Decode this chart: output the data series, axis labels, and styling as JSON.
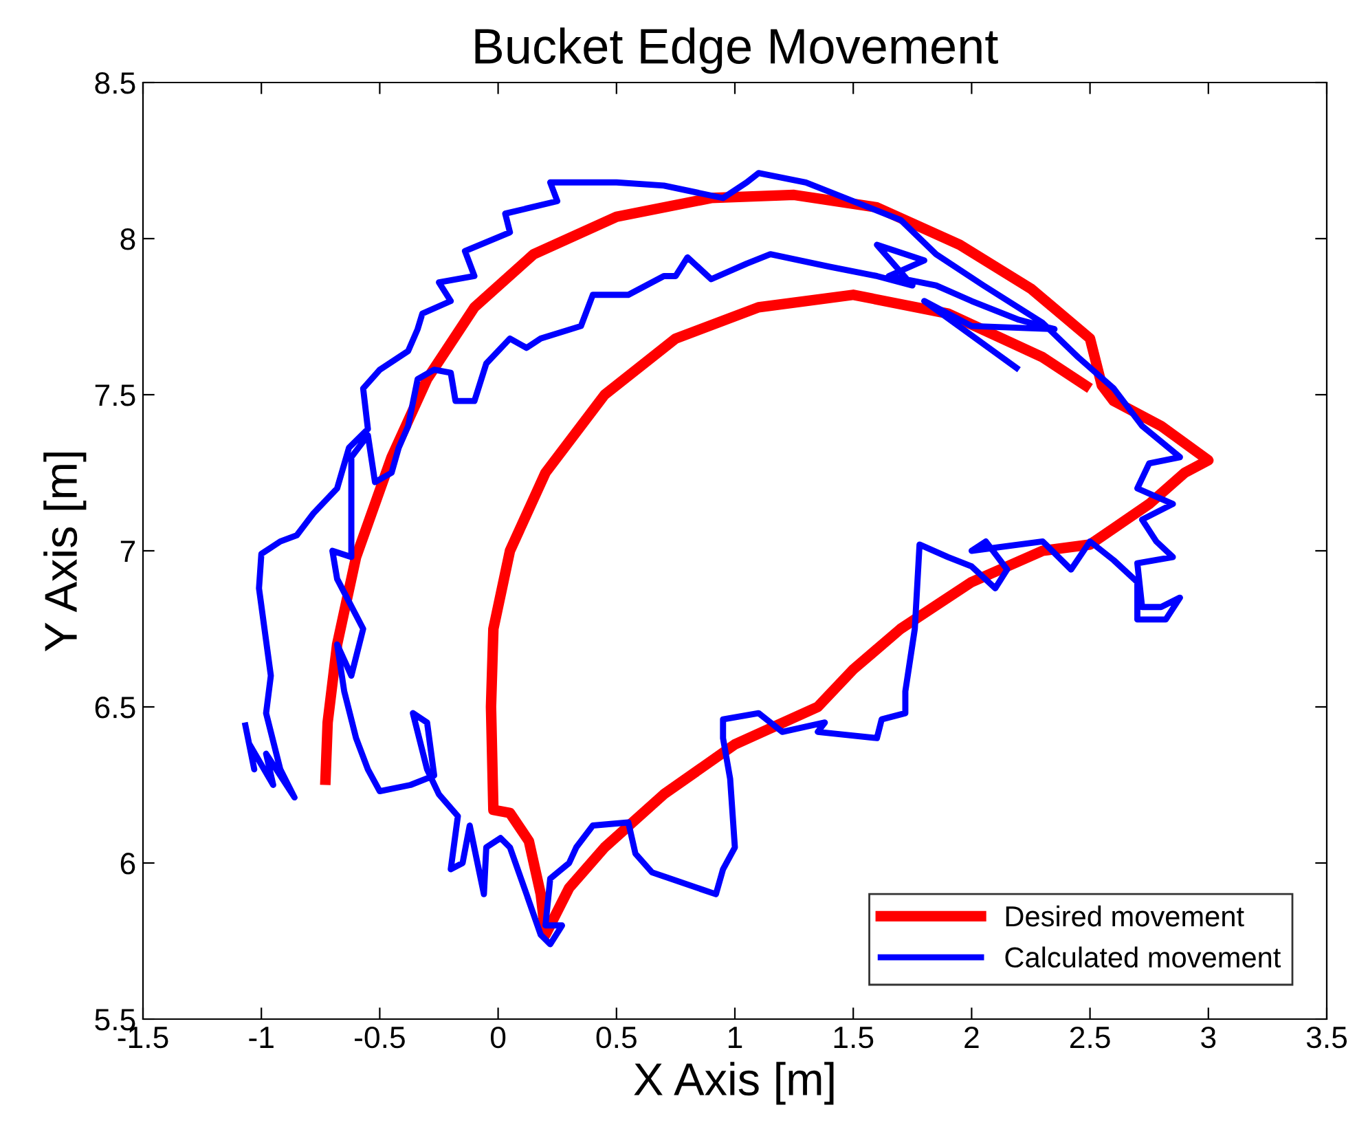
{
  "chart_data": {
    "type": "line",
    "title": "Bucket Edge Movement",
    "xlabel": "X Axis [m]",
    "ylabel": "Y Axis [m]",
    "xlim": [
      -1.5,
      3.5
    ],
    "ylim": [
      5.5,
      8.5
    ],
    "xticks": [
      -1.5,
      -1,
      -0.5,
      0,
      0.5,
      1,
      1.5,
      2,
      2.5,
      3,
      3.5
    ],
    "yticks": [
      5.5,
      6,
      6.5,
      7,
      7.5,
      8,
      8.5
    ],
    "grid": false,
    "legend": "bottom right",
    "marker": "none",
    "line_style": "solid",
    "series": [
      {
        "name": "Desired movement",
        "color": "#ff0000",
        "x": [
          -0.73,
          -0.72,
          -0.68,
          -0.6,
          -0.45,
          -0.3,
          -0.1,
          0.15,
          0.5,
          0.9,
          1.25,
          1.6,
          1.95,
          2.25,
          2.5,
          2.55,
          2.6,
          2.8,
          3.0,
          2.9,
          2.75,
          2.5,
          2.3,
          2.0,
          1.7,
          1.5,
          1.35,
          1.0,
          0.7,
          0.45,
          0.3,
          0.22,
          0.2,
          0.18,
          0.13,
          0.05,
          -0.02,
          -0.03,
          -0.02,
          0.05,
          0.2,
          0.45,
          0.75,
          1.1,
          1.5,
          1.9,
          2.3,
          2.5
        ],
        "values": [
          6.25,
          6.45,
          6.7,
          6.98,
          7.3,
          7.55,
          7.78,
          7.95,
          8.07,
          8.13,
          8.14,
          8.1,
          7.98,
          7.84,
          7.68,
          7.53,
          7.48,
          7.4,
          7.29,
          7.25,
          7.15,
          7.02,
          7.0,
          6.9,
          6.75,
          6.62,
          6.5,
          6.38,
          6.22,
          6.05,
          5.92,
          5.8,
          5.77,
          5.9,
          6.07,
          6.16,
          6.17,
          6.5,
          6.75,
          7.0,
          7.25,
          7.5,
          7.68,
          7.78,
          7.82,
          7.76,
          7.62,
          7.52
        ]
      },
      {
        "name": "Calculated movement",
        "color": "#0000ff",
        "x": [
          -1.07,
          -1.03,
          -1.05,
          -0.95,
          -0.98,
          -0.86,
          -0.92,
          -0.98,
          -0.96,
          -1.01,
          -1.0,
          -0.92,
          -0.85,
          -0.78,
          -0.68,
          -0.63,
          -0.55,
          -0.57,
          -0.5,
          -0.38,
          -0.34,
          -0.32,
          -0.2,
          -0.25,
          -0.1,
          -0.14,
          0.05,
          0.03,
          0.25,
          0.22,
          0.5,
          0.7,
          0.95,
          1.05,
          1.1,
          1.3,
          1.5,
          1.7,
          1.85,
          2.05,
          2.3,
          2.45,
          2.6,
          2.72,
          2.88,
          2.75,
          2.7,
          2.85,
          2.72,
          2.78,
          2.85,
          2.7,
          2.72,
          2.8,
          2.88,
          2.82,
          2.7,
          2.7,
          2.6,
          2.5,
          2.42,
          2.3,
          2.0,
          2.06,
          2.15,
          2.1,
          2.0,
          1.9,
          1.78,
          1.76,
          1.72,
          1.72,
          1.62,
          1.6,
          1.35,
          1.38,
          1.2,
          1.1,
          0.95,
          0.95,
          0.98,
          1.0,
          0.95,
          0.92,
          0.65,
          0.58,
          0.55,
          0.4,
          0.33,
          0.3,
          0.22,
          0.2,
          0.27,
          0.22,
          0.18,
          0.12,
          0.05,
          0.01,
          -0.05,
          -0.06,
          -0.12,
          -0.15,
          -0.2,
          -0.17,
          -0.25,
          -0.3,
          -0.36,
          -0.3,
          -0.27,
          -0.37,
          -0.5,
          -0.55,
          -0.6,
          -0.65,
          -0.68,
          -0.62,
          -0.57,
          -0.68,
          -0.7,
          -0.62,
          -0.62,
          -0.55,
          -0.52,
          -0.45,
          -0.42,
          -0.38,
          -0.34,
          -0.27,
          -0.2,
          -0.18,
          -0.1,
          -0.05,
          0.05,
          0.12,
          0.18,
          0.35,
          0.4,
          0.55,
          0.7,
          0.75,
          0.8,
          0.9,
          1.05,
          1.15,
          1.4,
          1.6,
          1.75,
          1.6,
          1.8,
          1.65,
          1.85,
          2.0,
          2.2,
          2.35,
          2.0,
          1.8,
          2.2
        ],
        "values": [
          6.45,
          6.3,
          6.38,
          6.25,
          6.35,
          6.21,
          6.3,
          6.48,
          6.6,
          6.88,
          6.99,
          7.03,
          7.05,
          7.12,
          7.2,
          7.33,
          7.39,
          7.52,
          7.58,
          7.64,
          7.71,
          7.76,
          7.8,
          7.86,
          7.88,
          7.96,
          8.02,
          8.08,
          8.12,
          8.18,
          8.18,
          8.17,
          8.13,
          8.18,
          8.21,
          8.18,
          8.12,
          8.06,
          7.95,
          7.85,
          7.73,
          7.62,
          7.52,
          7.4,
          7.3,
          7.28,
          7.2,
          7.15,
          7.1,
          7.03,
          6.98,
          6.96,
          6.82,
          6.82,
          6.85,
          6.78,
          6.78,
          6.9,
          6.97,
          7.03,
          6.94,
          7.03,
          7.0,
          7.03,
          6.94,
          6.88,
          6.95,
          6.98,
          7.02,
          6.75,
          6.55,
          6.48,
          6.46,
          6.4,
          6.42,
          6.45,
          6.42,
          6.48,
          6.46,
          6.4,
          6.27,
          6.05,
          5.98,
          5.9,
          5.97,
          6.03,
          6.13,
          6.12,
          6.05,
          6.0,
          5.95,
          5.8,
          5.8,
          5.74,
          5.77,
          5.9,
          6.05,
          6.08,
          6.05,
          5.9,
          6.12,
          6.0,
          5.98,
          6.15,
          6.22,
          6.3,
          6.48,
          6.45,
          6.28,
          6.25,
          6.23,
          6.3,
          6.4,
          6.55,
          6.7,
          6.6,
          6.75,
          6.91,
          7.0,
          6.98,
          7.3,
          7.37,
          7.22,
          7.25,
          7.33,
          7.4,
          7.55,
          7.58,
          7.57,
          7.48,
          7.48,
          7.6,
          7.68,
          7.65,
          7.68,
          7.72,
          7.82,
          7.82,
          7.88,
          7.88,
          7.94,
          7.87,
          7.92,
          7.95,
          7.91,
          7.88,
          7.85,
          7.98,
          7.93,
          7.88,
          7.85,
          7.8,
          7.74,
          7.71,
          7.72,
          7.8,
          7.58
        ]
      }
    ]
  }
}
